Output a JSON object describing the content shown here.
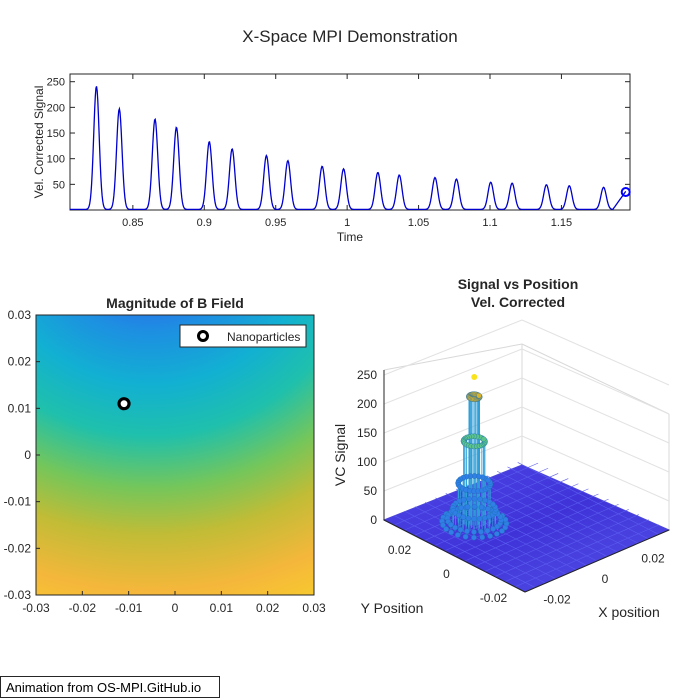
{
  "figure_title": "X-Space MPI Demonstration",
  "credit": "Animation from OS-MPI.GitHub.io",
  "chart_data": [
    {
      "type": "line",
      "title": "X-Space MPI Demonstration",
      "xlabel": "Time",
      "ylabel": "Vel. Corrected Signal",
      "xlim": [
        0.806,
        1.198
      ],
      "ylim": [
        0,
        265
      ],
      "xticks": [
        "0.85",
        "0.9",
        "0.95",
        "1",
        "1.05",
        "1.1",
        "1.15"
      ],
      "yticks": [
        "50",
        "100",
        "150",
        "200",
        "250"
      ],
      "series": [
        {
          "color": "#0000cc",
          "peaks_x": [
            0.8245,
            0.8405,
            0.8655,
            0.8805,
            0.9035,
            0.9195,
            0.9435,
            0.9585,
            0.9825,
            0.9975,
            1.0215,
            1.0365,
            1.0615,
            1.0765,
            1.1005,
            1.1155,
            1.1395,
            1.1555,
            1.1795
          ],
          "peaks_y": [
            240,
            196,
            176,
            160,
            132,
            118,
            105,
            95,
            84,
            79,
            72,
            67,
            62,
            59,
            53,
            51,
            48,
            46,
            43
          ]
        }
      ],
      "marker": {
        "x": 1.195,
        "y": 35,
        "color": "#0000ff"
      }
    },
    {
      "type": "heatmap",
      "title": "Magnitude of B Field",
      "xlim": [
        -0.03,
        0.03
      ],
      "ylim": [
        -0.03,
        0.03
      ],
      "xticks": [
        "-0.03",
        "-0.02",
        "-0.01",
        "0",
        "0.01",
        "0.02",
        "0.03"
      ],
      "yticks": [
        "-0.03",
        "-0.02",
        "-0.01",
        "0",
        "0.01",
        "0.02",
        "0.03"
      ],
      "colormap": "parula",
      "legend": {
        "label": "Nanoparticles",
        "placement": "top-right"
      },
      "point": {
        "x": -0.011,
        "y": 0.011
      }
    },
    {
      "type": "surface",
      "title": "Signal vs Position",
      "subtitle": "Vel. Corrected",
      "xlabel": "X position",
      "ylabel": "Y Position",
      "zlabel": "VC Signal",
      "zticks": [
        "0",
        "50",
        "100",
        "150",
        "200",
        "250"
      ],
      "xticks": [
        "-0.02",
        "0",
        "0.02"
      ],
      "yticks": [
        "-0.02",
        "0",
        "0.02"
      ],
      "peak": {
        "x": -0.011,
        "y": 0.011,
        "z": 252
      }
    }
  ]
}
